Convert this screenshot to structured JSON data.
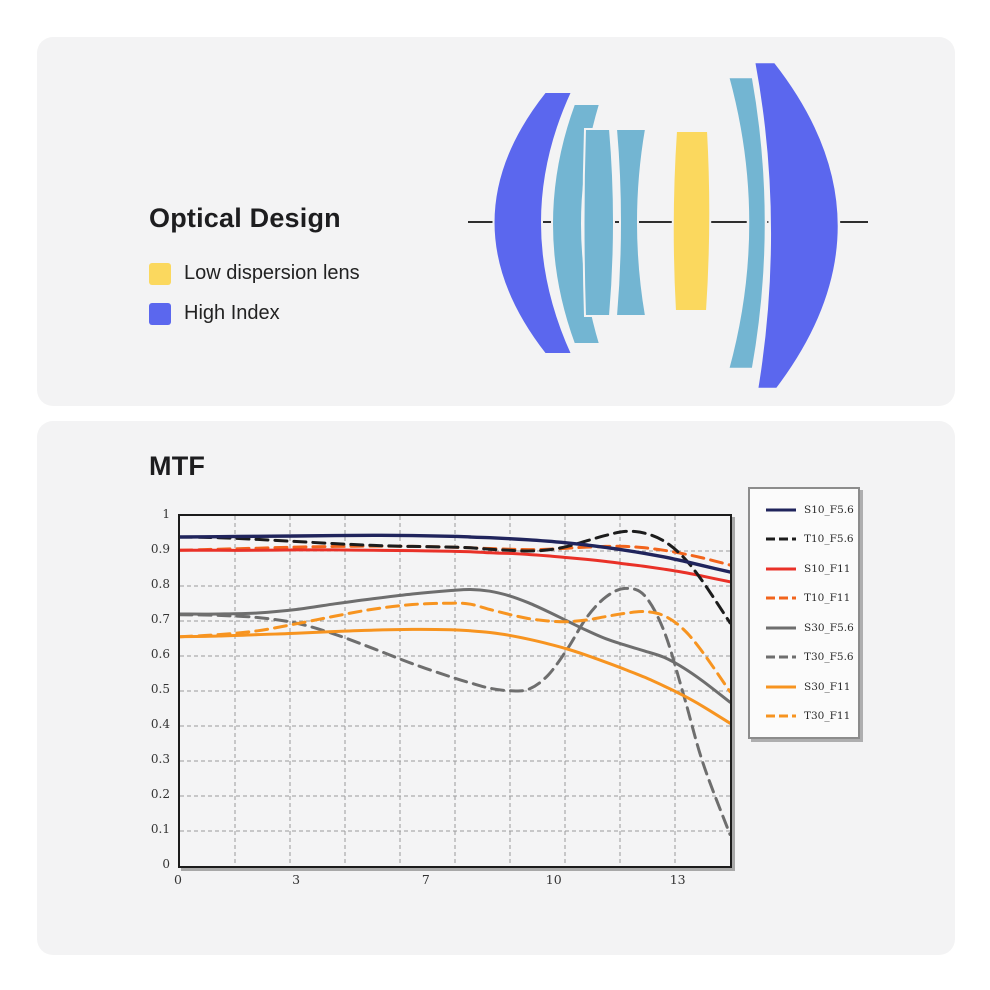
{
  "optical": {
    "title": "Optical Design",
    "legend": [
      {
        "label": "Low dispersion lens",
        "swatch_icon": "yellow-square-icon",
        "color": "#fbd85e"
      },
      {
        "label": "High Index",
        "swatch_icon": "blue-square-icon",
        "color": "#5b67ee"
      }
    ],
    "lens_colors": {
      "high_index": "#5b67ee",
      "standard_glass": "#73b5d2",
      "low_dispersion": "#fbd85e",
      "optical_axis": "#2e2e2e",
      "panel_background": "#f3f3f4"
    }
  },
  "mtf": {
    "title": "MTF",
    "chart_data": {
      "type": "line",
      "title": "MTF",
      "xlabel": "",
      "ylabel": "",
      "xlim": [
        0,
        14.2
      ],
      "ylim": [
        0,
        1
      ],
      "grid": "dashed gray",
      "legend_position": "right",
      "x_axis": {
        "tick_labels": [
          "0",
          "3",
          "7",
          "10",
          "13"
        ],
        "tick_positions": [
          0,
          3.05,
          6.4,
          9.7,
          12.9
        ]
      },
      "y_axis": {
        "tick_labels": [
          "1",
          "0.9",
          "0.8",
          "0.7",
          "0.6",
          "0.5",
          "0.4",
          "0.3",
          "0.2",
          "0.1",
          "0"
        ],
        "tick_values": [
          1,
          0.9,
          0.8,
          0.7,
          0.6,
          0.5,
          0.4,
          0.3,
          0.2,
          0.1,
          0
        ]
      },
      "x": [
        0,
        1,
        2,
        3,
        4,
        5,
        6,
        7,
        7.5,
        8,
        8.5,
        9,
        9.5,
        10,
        10.5,
        11,
        11.5,
        12,
        12.5,
        13,
        13.5,
        14.2
      ],
      "series": [
        {
          "name": "S10_F5.6",
          "color": "#20245c",
          "style": "solid",
          "width": 3.4,
          "values": [
            0.94,
            0.941,
            0.942,
            0.943,
            0.944,
            0.945,
            0.944,
            0.942,
            0.94,
            0.938,
            0.935,
            0.932,
            0.928,
            0.923,
            0.917,
            0.91,
            0.902,
            0.893,
            0.883,
            0.871,
            0.858,
            0.84
          ]
        },
        {
          "name": "T10_F5.6",
          "color": "#1c1c1c",
          "style": "dashed",
          "width": 3,
          "values": [
            0.94,
            0.938,
            0.933,
            0.927,
            0.921,
            0.916,
            0.913,
            0.911,
            0.909,
            0.905,
            0.902,
            0.9,
            0.903,
            0.913,
            0.929,
            0.945,
            0.956,
            0.951,
            0.928,
            0.882,
            0.812,
            0.695
          ]
        },
        {
          "name": "S10_F11",
          "color": "#e93128",
          "style": "solid",
          "width": 3,
          "values": [
            0.902,
            0.902,
            0.902,
            0.903,
            0.903,
            0.902,
            0.901,
            0.899,
            0.898,
            0.895,
            0.893,
            0.89,
            0.886,
            0.881,
            0.876,
            0.87,
            0.863,
            0.856,
            0.848,
            0.839,
            0.828,
            0.812
          ]
        },
        {
          "name": "T10_F11",
          "color": "#f2641c",
          "style": "dashed",
          "width": 3,
          "values": [
            0.902,
            0.905,
            0.908,
            0.911,
            0.913,
            0.914,
            0.913,
            0.911,
            0.909,
            0.907,
            0.905,
            0.904,
            0.905,
            0.908,
            0.911,
            0.913,
            0.913,
            0.909,
            0.902,
            0.892,
            0.88,
            0.86
          ]
        },
        {
          "name": "S30_F5.6",
          "color": "#6e6e6e",
          "style": "solid",
          "width": 3,
          "values": [
            0.72,
            0.72,
            0.723,
            0.733,
            0.749,
            0.764,
            0.777,
            0.787,
            0.79,
            0.785,
            0.772,
            0.752,
            0.727,
            0.7,
            0.673,
            0.649,
            0.631,
            0.614,
            0.596,
            0.566,
            0.528,
            0.468
          ]
        },
        {
          "name": "T30_F5.6",
          "color": "#6e6e6e",
          "style": "dashed",
          "width": 3,
          "values": [
            0.718,
            0.716,
            0.71,
            0.694,
            0.662,
            0.621,
            0.578,
            0.54,
            0.523,
            0.508,
            0.501,
            0.505,
            0.545,
            0.62,
            0.71,
            0.769,
            0.793,
            0.772,
            0.67,
            0.49,
            0.295,
            0.09
          ]
        },
        {
          "name": "S30_F11",
          "color": "#f79420",
          "style": "solid",
          "width": 3,
          "values": [
            0.655,
            0.657,
            0.661,
            0.665,
            0.67,
            0.674,
            0.676,
            0.675,
            0.672,
            0.667,
            0.659,
            0.648,
            0.635,
            0.62,
            0.602,
            0.582,
            0.561,
            0.539,
            0.514,
            0.487,
            0.456,
            0.408
          ]
        },
        {
          "name": "T30_F11",
          "color": "#f79420",
          "style": "dashed",
          "width": 3,
          "values": [
            0.655,
            0.661,
            0.672,
            0.692,
            0.714,
            0.734,
            0.747,
            0.751,
            0.748,
            0.733,
            0.719,
            0.707,
            0.7,
            0.698,
            0.703,
            0.713,
            0.722,
            0.727,
            0.715,
            0.676,
            0.61,
            0.498
          ]
        }
      ]
    }
  }
}
